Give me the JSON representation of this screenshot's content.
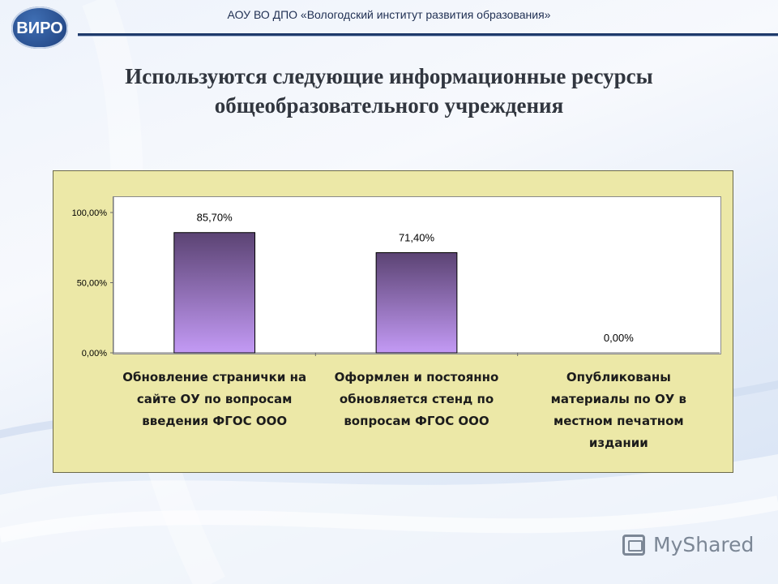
{
  "header": {
    "logo_text": "ВИРО",
    "org_name": "АОУ ВО ДПО «Вологодский институт развития образования»"
  },
  "slide": {
    "title_line1": "Используются следующие информационные ресурсы",
    "title_line2": "общеобразовательного учреждения"
  },
  "chart_data": {
    "type": "bar",
    "categories": [
      [
        "Обновление странички на",
        "сайте ОУ по вопросам",
        "введения ФГОС ООО"
      ],
      [
        "Оформлен и постоянно",
        "обновляется стенд по",
        "вопросам ФГОС ООО"
      ],
      [
        "Опубликованы",
        "материалы по ОУ в",
        "местном печатном",
        "издании"
      ]
    ],
    "values": [
      85.7,
      71.4,
      0.0
    ],
    "data_labels": [
      "85,70%",
      "71,40%",
      "0,00%"
    ],
    "y_ticks": [
      "0,00%",
      "50,00%",
      "100,00%"
    ],
    "ylim": [
      0,
      110
    ],
    "title": "",
    "xlabel": "",
    "ylabel": "",
    "panel_color": "#ece8a7",
    "bar_color_top": "#5b4373",
    "bar_color_bottom": "#c39af5",
    "grid": false,
    "legend": "none"
  },
  "watermark": {
    "text": "MyShared",
    "icon": "myshared-logo-icon"
  }
}
